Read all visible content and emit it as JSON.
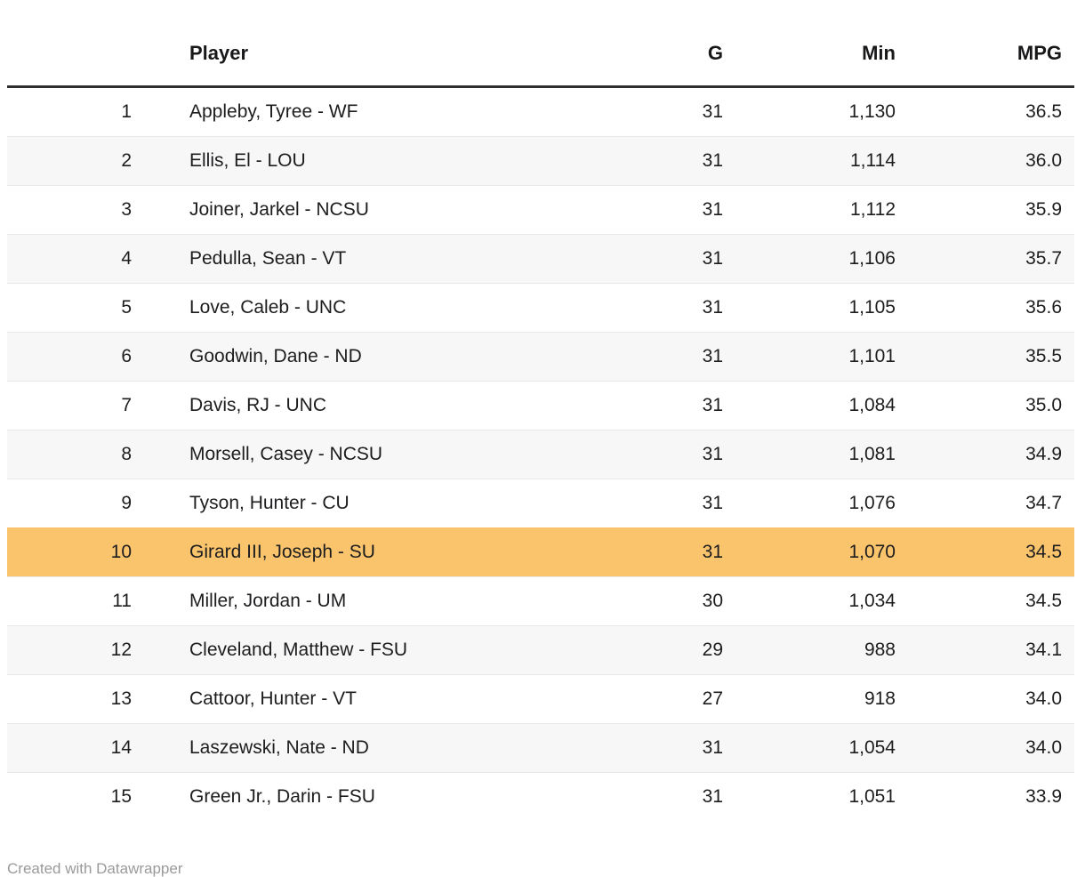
{
  "table": {
    "columns": {
      "rank": "",
      "player": "Player",
      "g": "G",
      "min": "Min",
      "mpg": "MPG"
    },
    "rows": [
      {
        "rank": "1",
        "player": "Appleby, Tyree - WF",
        "g": "31",
        "min": "1,130",
        "mpg": "36.5",
        "highlighted": false
      },
      {
        "rank": "2",
        "player": "Ellis, El - LOU",
        "g": "31",
        "min": "1,114",
        "mpg": "36.0",
        "highlighted": false
      },
      {
        "rank": "3",
        "player": "Joiner, Jarkel - NCSU",
        "g": "31",
        "min": "1,112",
        "mpg": "35.9",
        "highlighted": false
      },
      {
        "rank": "4",
        "player": "Pedulla, Sean - VT",
        "g": "31",
        "min": "1,106",
        "mpg": "35.7",
        "highlighted": false
      },
      {
        "rank": "5",
        "player": "Love, Caleb - UNC",
        "g": "31",
        "min": "1,105",
        "mpg": "35.6",
        "highlighted": false
      },
      {
        "rank": "6",
        "player": "Goodwin, Dane - ND",
        "g": "31",
        "min": "1,101",
        "mpg": "35.5",
        "highlighted": false
      },
      {
        "rank": "7",
        "player": "Davis, RJ - UNC",
        "g": "31",
        "min": "1,084",
        "mpg": "35.0",
        "highlighted": false
      },
      {
        "rank": "8",
        "player": "Morsell, Casey - NCSU",
        "g": "31",
        "min": "1,081",
        "mpg": "34.9",
        "highlighted": false
      },
      {
        "rank": "9",
        "player": "Tyson, Hunter - CU",
        "g": "31",
        "min": "1,076",
        "mpg": "34.7",
        "highlighted": false
      },
      {
        "rank": "10",
        "player": "Girard III, Joseph - SU",
        "g": "31",
        "min": "1,070",
        "mpg": "34.5",
        "highlighted": true
      },
      {
        "rank": "11",
        "player": "Miller, Jordan - UM",
        "g": "30",
        "min": "1,034",
        "mpg": "34.5",
        "highlighted": false
      },
      {
        "rank": "12",
        "player": "Cleveland, Matthew - FSU",
        "g": "29",
        "min": "988",
        "mpg": "34.1",
        "highlighted": false
      },
      {
        "rank": "13",
        "player": "Cattoor, Hunter - VT",
        "g": "27",
        "min": "918",
        "mpg": "34.0",
        "highlighted": false
      },
      {
        "rank": "14",
        "player": "Laszewski, Nate - ND",
        "g": "31",
        "min": "1,054",
        "mpg": "34.0",
        "highlighted": false
      },
      {
        "rank": "15",
        "player": "Green Jr., Darin - FSU",
        "g": "31",
        "min": "1,051",
        "mpg": "33.9",
        "highlighted": false
      }
    ]
  },
  "footer": {
    "attribution": "Created with Datawrapper"
  },
  "colors": {
    "highlight": "#f9c46b",
    "row_alt": "#f7f7f7",
    "header_border": "#2e2e31",
    "row_border": "#e9e9e9",
    "body_text": "#1d1d1f",
    "attribution_text": "#9a9a9a"
  },
  "chart_data": {
    "type": "table",
    "title": "",
    "columns": [
      "rank",
      "Player",
      "G",
      "Min",
      "MPG"
    ],
    "rows": [
      [
        1,
        "Appleby, Tyree - WF",
        31,
        1130,
        36.5
      ],
      [
        2,
        "Ellis, El - LOU",
        31,
        1114,
        36.0
      ],
      [
        3,
        "Joiner, Jarkel - NCSU",
        31,
        1112,
        35.9
      ],
      [
        4,
        "Pedulla, Sean - VT",
        31,
        1106,
        35.7
      ],
      [
        5,
        "Love, Caleb - UNC",
        31,
        1105,
        35.6
      ],
      [
        6,
        "Goodwin, Dane - ND",
        31,
        1101,
        35.5
      ],
      [
        7,
        "Davis, RJ - UNC",
        31,
        1084,
        35.0
      ],
      [
        8,
        "Morsell, Casey - NCSU",
        31,
        1081,
        34.9
      ],
      [
        9,
        "Tyson, Hunter - CU",
        31,
        1076,
        34.7
      ],
      [
        10,
        "Girard III, Joseph - SU",
        31,
        1070,
        34.5
      ],
      [
        11,
        "Miller, Jordan - UM",
        30,
        1034,
        34.5
      ],
      [
        12,
        "Cleveland, Matthew - FSU",
        29,
        988,
        34.1
      ],
      [
        13,
        "Cattoor, Hunter - VT",
        27,
        918,
        34.0
      ],
      [
        14,
        "Laszewski, Nate - ND",
        31,
        1054,
        34.0
      ],
      [
        15,
        "Green Jr., Darin - FSU",
        31,
        1051,
        33.9
      ]
    ],
    "highlighted_row_rank": 10,
    "layout_hints": {
      "zebra_striping": true,
      "header_rule": "thick dark bottom border",
      "numeric_columns_right_aligned": true
    }
  }
}
